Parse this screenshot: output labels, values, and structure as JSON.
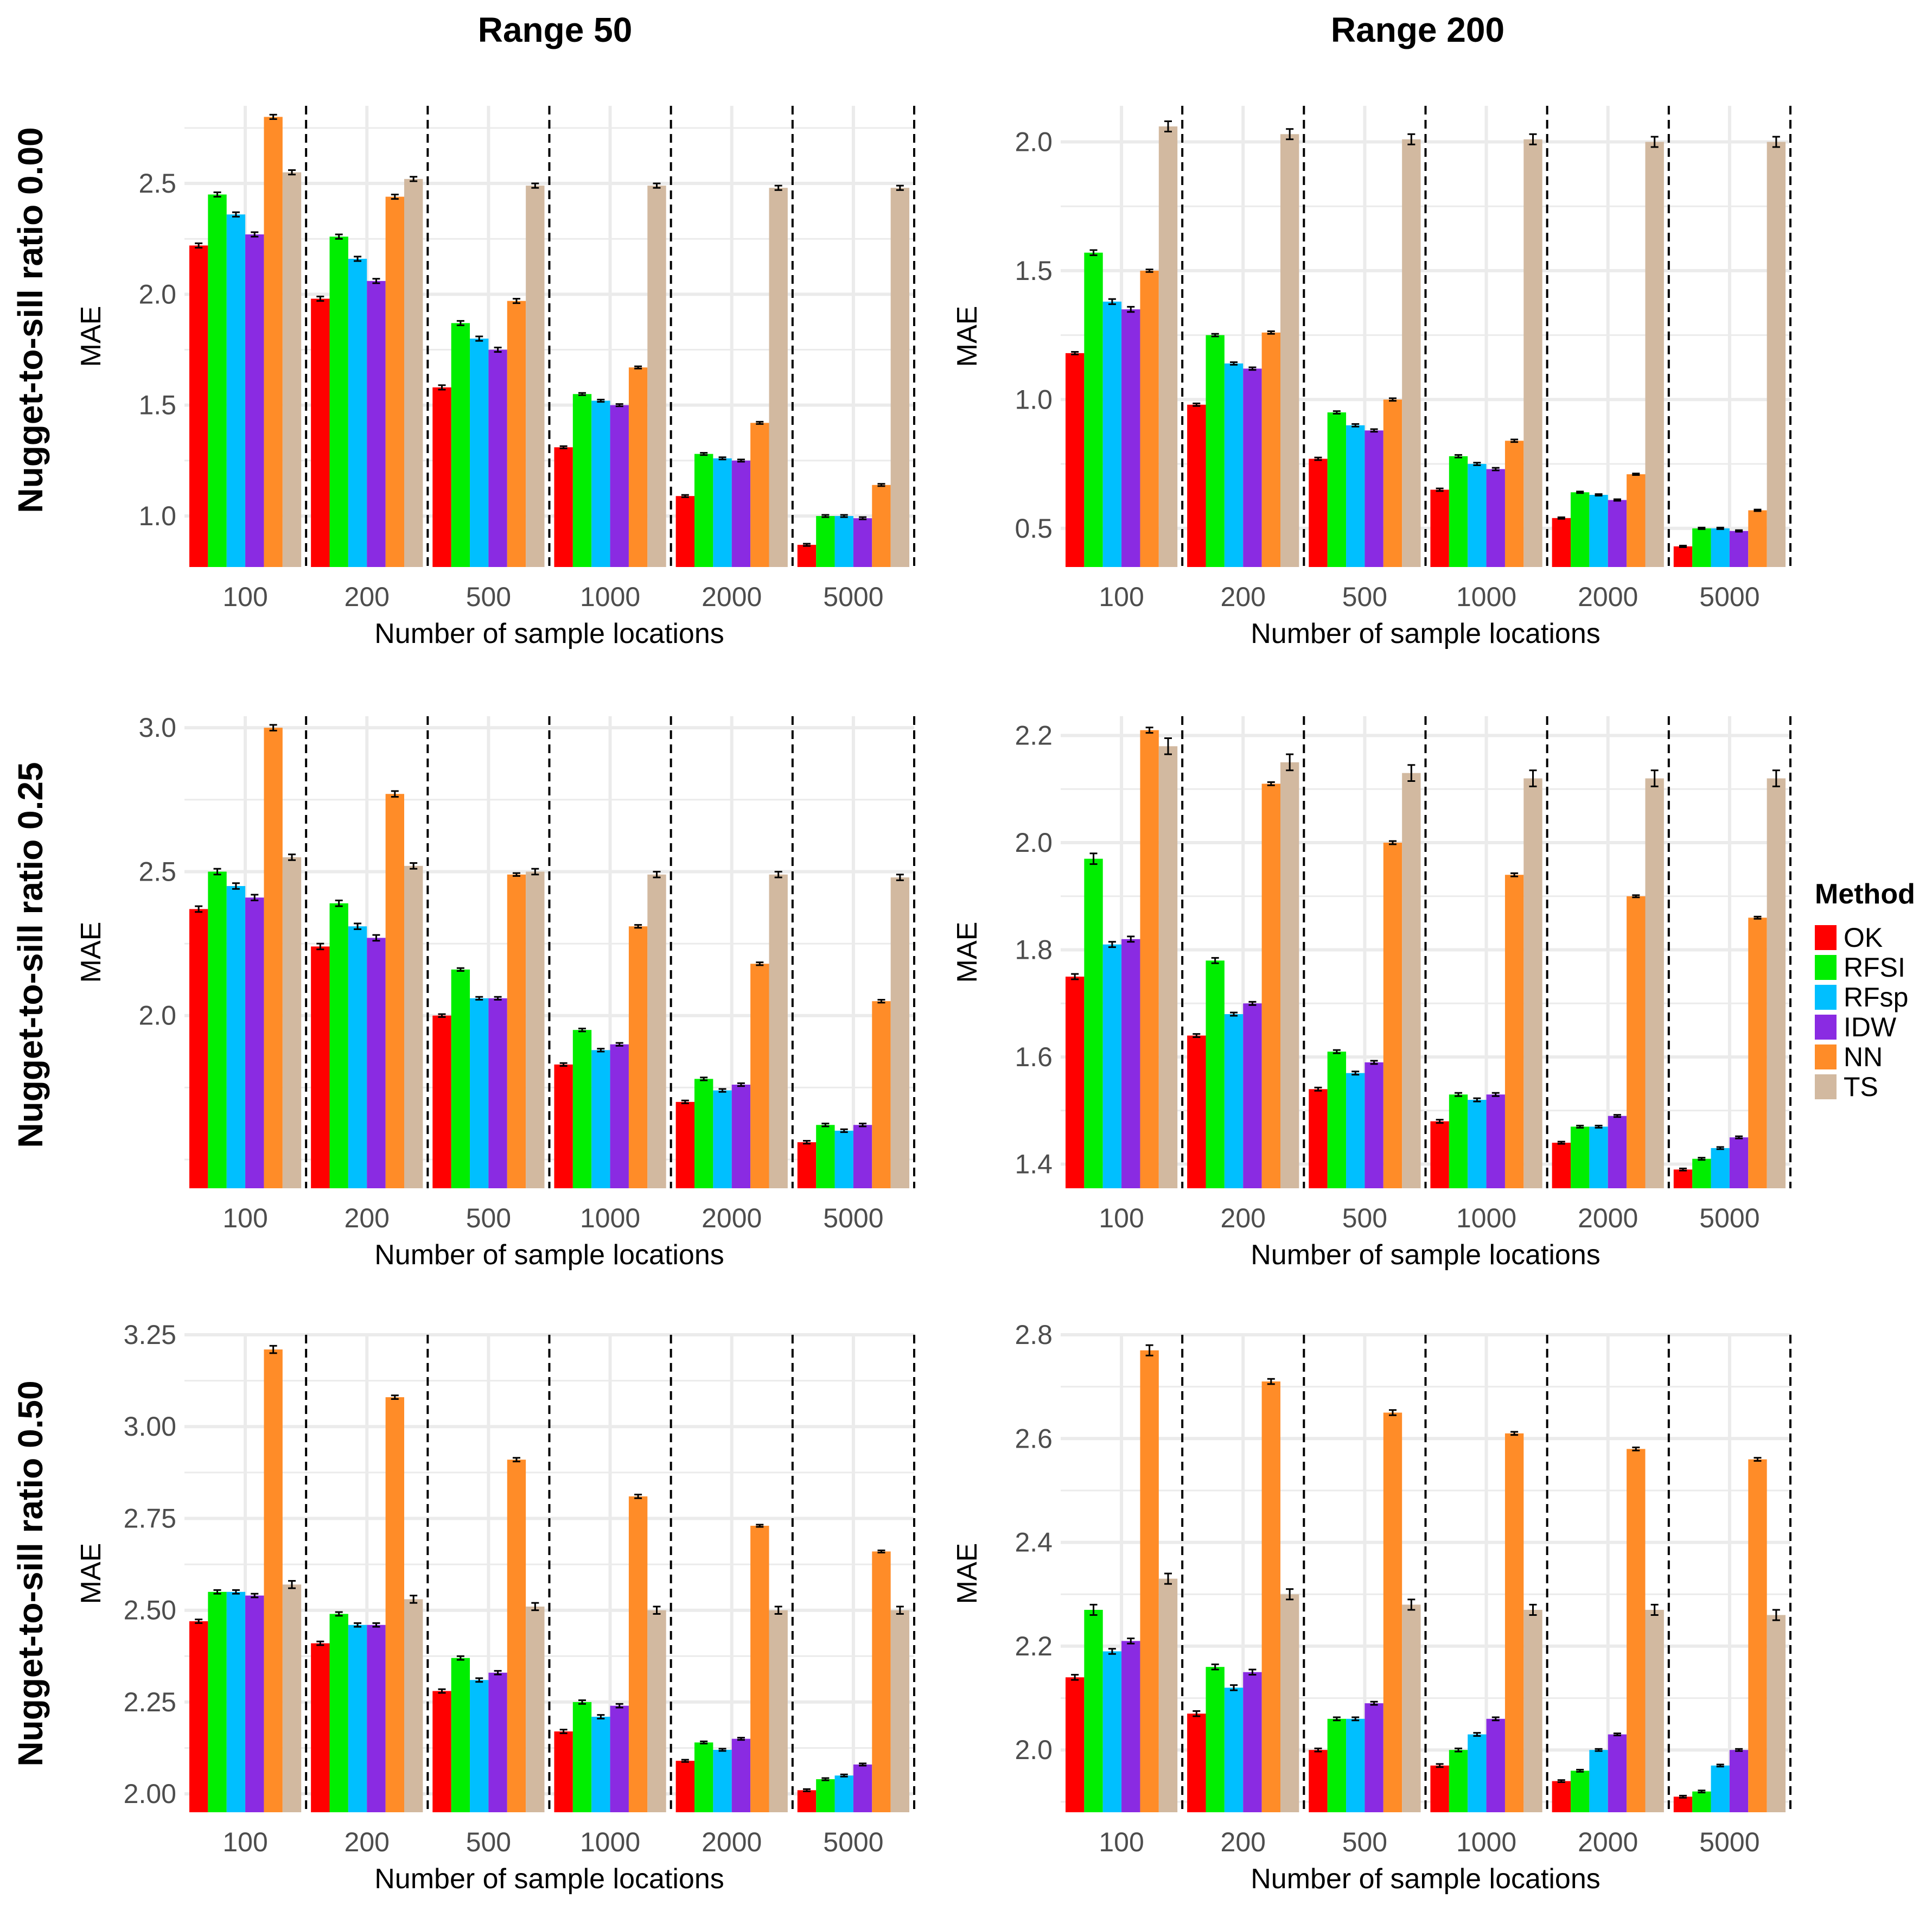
{
  "methods": [
    "OK",
    "RFSI",
    "RFsp",
    "IDW",
    "NN",
    "TS"
  ],
  "colors": {
    "OK": "#ff0000",
    "RFSI": "#00ee00",
    "RFsp": "#00bfff",
    "IDW": "#8a2be2",
    "NN": "#ff8c28",
    "TS": "#d2b9a0",
    "grid": "#ebebeb",
    "divider": "#000000",
    "error_bar": "#000000"
  },
  "columns": {
    "c0": "Range 50",
    "c1": "Range 200"
  },
  "rows": {
    "r0": "Nugget-to-sill ratio 0.00",
    "r1": "Nugget-to-sill ratio 0.25",
    "r2": "Nugget-to-sill ratio 0.50"
  },
  "legend": {
    "title": "Method",
    "items": [
      "OK",
      "RFSI",
      "RFsp",
      "IDW",
      "NN",
      "TS"
    ]
  },
  "chart_data": [
    {
      "id": "p00",
      "type": "bar",
      "row": "Nugget-to-sill ratio 0.00",
      "column": "Range 50",
      "xlabel": "Number of sample locations",
      "ylabel": "MAE",
      "categories": [
        "100",
        "200",
        "500",
        "1000",
        "2000",
        "5000"
      ],
      "ylim": [
        0.77,
        2.85
      ],
      "yticks": [
        1.0,
        1.5,
        2.0,
        2.5
      ],
      "yticklabels": [
        "1.0",
        "1.5",
        "2.0",
        "2.5"
      ],
      "series": [
        {
          "name": "OK",
          "values": [
            2.22,
            1.98,
            1.58,
            1.31,
            1.09,
            0.87
          ],
          "err": [
            0.01,
            0.01,
            0.01,
            0.005,
            0.005,
            0.005
          ]
        },
        {
          "name": "RFSI",
          "values": [
            2.45,
            2.26,
            1.87,
            1.55,
            1.28,
            1.0
          ],
          "err": [
            0.01,
            0.01,
            0.01,
            0.005,
            0.005,
            0.005
          ]
        },
        {
          "name": "RFsp",
          "values": [
            2.36,
            2.16,
            1.8,
            1.52,
            1.26,
            1.0
          ],
          "err": [
            0.01,
            0.01,
            0.01,
            0.005,
            0.005,
            0.005
          ]
        },
        {
          "name": "IDW",
          "values": [
            2.27,
            2.06,
            1.75,
            1.5,
            1.25,
            0.99
          ],
          "err": [
            0.01,
            0.01,
            0.01,
            0.005,
            0.005,
            0.005
          ]
        },
        {
          "name": "NN",
          "values": [
            2.8,
            2.44,
            1.97,
            1.67,
            1.42,
            1.14
          ],
          "err": [
            0.01,
            0.01,
            0.01,
            0.005,
            0.005,
            0.005
          ]
        },
        {
          "name": "TS",
          "values": [
            2.55,
            2.52,
            2.49,
            2.49,
            2.48,
            2.48
          ],
          "err": [
            0.01,
            0.01,
            0.01,
            0.01,
            0.01,
            0.01
          ]
        }
      ]
    },
    {
      "id": "p01",
      "type": "bar",
      "row": "Nugget-to-sill ratio 0.00",
      "column": "Range 200",
      "xlabel": "Number of sample locations",
      "ylabel": "MAE",
      "categories": [
        "100",
        "200",
        "500",
        "1000",
        "2000",
        "5000"
      ],
      "ylim": [
        0.35,
        2.14
      ],
      "yticks": [
        0.5,
        1.0,
        1.5,
        2.0
      ],
      "yticklabels": [
        "0.5",
        "1.0",
        "1.5",
        "2.0"
      ],
      "series": [
        {
          "name": "OK",
          "values": [
            1.18,
            0.98,
            0.77,
            0.65,
            0.54,
            0.43
          ],
          "err": [
            0.005,
            0.005,
            0.005,
            0.005,
            0.003,
            0.003
          ]
        },
        {
          "name": "RFSI",
          "values": [
            1.57,
            1.25,
            0.95,
            0.78,
            0.64,
            0.5
          ],
          "err": [
            0.01,
            0.005,
            0.005,
            0.005,
            0.003,
            0.003
          ]
        },
        {
          "name": "RFsp",
          "values": [
            1.38,
            1.14,
            0.9,
            0.75,
            0.63,
            0.5
          ],
          "err": [
            0.01,
            0.005,
            0.005,
            0.005,
            0.003,
            0.003
          ]
        },
        {
          "name": "IDW",
          "values": [
            1.35,
            1.12,
            0.88,
            0.73,
            0.61,
            0.49
          ],
          "err": [
            0.01,
            0.005,
            0.005,
            0.005,
            0.003,
            0.003
          ]
        },
        {
          "name": "NN",
          "values": [
            1.5,
            1.26,
            1.0,
            0.84,
            0.71,
            0.57
          ],
          "err": [
            0.005,
            0.005,
            0.005,
            0.005,
            0.003,
            0.003
          ]
        },
        {
          "name": "TS",
          "values": [
            2.06,
            2.03,
            2.01,
            2.01,
            2.0,
            2.0
          ],
          "err": [
            0.02,
            0.02,
            0.02,
            0.02,
            0.02,
            0.02
          ]
        }
      ]
    },
    {
      "id": "p10",
      "type": "bar",
      "row": "Nugget-to-sill ratio 0.25",
      "column": "Range 50",
      "xlabel": "Number of sample locations",
      "ylabel": "MAE",
      "categories": [
        "100",
        "200",
        "500",
        "1000",
        "2000",
        "5000"
      ],
      "ylim": [
        1.4,
        3.04
      ],
      "yticks": [
        2.0,
        2.5,
        3.0
      ],
      "yticklabels": [
        "2.0",
        "2.5",
        "3.0"
      ],
      "series": [
        {
          "name": "OK",
          "values": [
            2.37,
            2.24,
            2.0,
            1.83,
            1.7,
            1.56
          ],
          "err": [
            0.01,
            0.01,
            0.005,
            0.005,
            0.005,
            0.005
          ]
        },
        {
          "name": "RFSI",
          "values": [
            2.5,
            2.39,
            2.16,
            1.95,
            1.78,
            1.62
          ],
          "err": [
            0.01,
            0.01,
            0.005,
            0.005,
            0.005,
            0.005
          ]
        },
        {
          "name": "RFsp",
          "values": [
            2.45,
            2.31,
            2.06,
            1.88,
            1.74,
            1.6
          ],
          "err": [
            0.01,
            0.01,
            0.005,
            0.005,
            0.005,
            0.005
          ]
        },
        {
          "name": "IDW",
          "values": [
            2.41,
            2.27,
            2.06,
            1.9,
            1.76,
            1.62
          ],
          "err": [
            0.01,
            0.01,
            0.005,
            0.005,
            0.005,
            0.005
          ]
        },
        {
          "name": "NN",
          "values": [
            3.0,
            2.77,
            2.49,
            2.31,
            2.18,
            2.05
          ],
          "err": [
            0.01,
            0.01,
            0.005,
            0.005,
            0.005,
            0.005
          ]
        },
        {
          "name": "TS",
          "values": [
            2.55,
            2.52,
            2.5,
            2.49,
            2.49,
            2.48
          ],
          "err": [
            0.01,
            0.01,
            0.01,
            0.01,
            0.01,
            0.01
          ]
        }
      ]
    },
    {
      "id": "p11",
      "type": "bar",
      "row": "Nugget-to-sill ratio 0.25",
      "column": "Range 200",
      "xlabel": "Number of sample locations",
      "ylabel": "MAE",
      "categories": [
        "100",
        "200",
        "500",
        "1000",
        "2000",
        "5000"
      ],
      "ylim": [
        1.355,
        2.236
      ],
      "yticks": [
        1.4,
        1.6,
        1.8,
        2.0,
        2.2
      ],
      "yticklabels": [
        "1.4",
        "1.6",
        "1.8",
        "2.0",
        "2.2"
      ],
      "series": [
        {
          "name": "OK",
          "values": [
            1.75,
            1.64,
            1.54,
            1.48,
            1.44,
            1.39
          ],
          "err": [
            0.005,
            0.003,
            0.003,
            0.003,
            0.002,
            0.002
          ]
        },
        {
          "name": "RFSI",
          "values": [
            1.97,
            1.78,
            1.61,
            1.53,
            1.47,
            1.41
          ],
          "err": [
            0.01,
            0.005,
            0.003,
            0.003,
            0.002,
            0.002
          ]
        },
        {
          "name": "RFsp",
          "values": [
            1.81,
            1.68,
            1.57,
            1.52,
            1.47,
            1.43
          ],
          "err": [
            0.005,
            0.003,
            0.003,
            0.003,
            0.002,
            0.002
          ]
        },
        {
          "name": "IDW",
          "values": [
            1.82,
            1.7,
            1.59,
            1.53,
            1.49,
            1.45
          ],
          "err": [
            0.005,
            0.003,
            0.003,
            0.003,
            0.002,
            0.002
          ]
        },
        {
          "name": "NN",
          "values": [
            2.21,
            2.11,
            2.0,
            1.94,
            1.9,
            1.86
          ],
          "err": [
            0.005,
            0.003,
            0.003,
            0.003,
            0.002,
            0.002
          ]
        },
        {
          "name": "TS",
          "values": [
            2.18,
            2.15,
            2.13,
            2.12,
            2.12,
            2.12
          ],
          "err": [
            0.015,
            0.015,
            0.015,
            0.015,
            0.015,
            0.015
          ]
        }
      ]
    },
    {
      "id": "p20",
      "type": "bar",
      "row": "Nugget-to-sill ratio 0.50",
      "column": "Range 50",
      "xlabel": "Number of sample locations",
      "ylabel": "MAE",
      "categories": [
        "100",
        "200",
        "500",
        "1000",
        "2000",
        "5000"
      ],
      "ylim": [
        1.95,
        3.25
      ],
      "yticks": [
        2.0,
        2.25,
        2.5,
        2.75,
        3.0,
        3.25
      ],
      "yticklabels": [
        "2.00",
        "2.25",
        "2.50",
        "2.75",
        "3.00",
        "3.25"
      ],
      "series": [
        {
          "name": "OK",
          "values": [
            2.47,
            2.41,
            2.28,
            2.17,
            2.09,
            2.01
          ],
          "err": [
            0.005,
            0.005,
            0.005,
            0.005,
            0.003,
            0.003
          ]
        },
        {
          "name": "RFSI",
          "values": [
            2.55,
            2.49,
            2.37,
            2.25,
            2.14,
            2.04
          ],
          "err": [
            0.005,
            0.005,
            0.005,
            0.005,
            0.003,
            0.003
          ]
        },
        {
          "name": "RFsp",
          "values": [
            2.55,
            2.46,
            2.31,
            2.21,
            2.12,
            2.05
          ],
          "err": [
            0.005,
            0.005,
            0.005,
            0.005,
            0.003,
            0.003
          ]
        },
        {
          "name": "IDW",
          "values": [
            2.54,
            2.46,
            2.33,
            2.24,
            2.15,
            2.08
          ],
          "err": [
            0.005,
            0.005,
            0.005,
            0.005,
            0.003,
            0.003
          ]
        },
        {
          "name": "NN",
          "values": [
            3.21,
            3.08,
            2.91,
            2.81,
            2.73,
            2.66
          ],
          "err": [
            0.01,
            0.005,
            0.005,
            0.005,
            0.003,
            0.003
          ]
        },
        {
          "name": "TS",
          "values": [
            2.57,
            2.53,
            2.51,
            2.5,
            2.5,
            2.5
          ],
          "err": [
            0.01,
            0.01,
            0.01,
            0.01,
            0.01,
            0.01
          ]
        }
      ]
    },
    {
      "id": "p21",
      "type": "bar",
      "row": "Nugget-to-sill ratio 0.50",
      "column": "Range 200",
      "xlabel": "Number of sample locations",
      "ylabel": "MAE",
      "categories": [
        "100",
        "200",
        "500",
        "1000",
        "2000",
        "5000"
      ],
      "ylim": [
        1.88,
        2.8
      ],
      "yticks": [
        2.0,
        2.2,
        2.4,
        2.6,
        2.8
      ],
      "yticklabels": [
        "2.0",
        "2.2",
        "2.4",
        "2.6",
        "2.8"
      ],
      "series": [
        {
          "name": "OK",
          "values": [
            2.14,
            2.07,
            2.0,
            1.97,
            1.94,
            1.91
          ],
          "err": [
            0.005,
            0.005,
            0.003,
            0.003,
            0.002,
            0.002
          ]
        },
        {
          "name": "RFSI",
          "values": [
            2.27,
            2.16,
            2.06,
            2.0,
            1.96,
            1.92
          ],
          "err": [
            0.01,
            0.005,
            0.003,
            0.003,
            0.002,
            0.002
          ]
        },
        {
          "name": "RFsp",
          "values": [
            2.19,
            2.12,
            2.06,
            2.03,
            2.0,
            1.97
          ],
          "err": [
            0.005,
            0.005,
            0.003,
            0.003,
            0.002,
            0.002
          ]
        },
        {
          "name": "IDW",
          "values": [
            2.21,
            2.15,
            2.09,
            2.06,
            2.03,
            2.0
          ],
          "err": [
            0.005,
            0.005,
            0.003,
            0.003,
            0.002,
            0.002
          ]
        },
        {
          "name": "NN",
          "values": [
            2.77,
            2.71,
            2.65,
            2.61,
            2.58,
            2.56
          ],
          "err": [
            0.01,
            0.005,
            0.005,
            0.003,
            0.003,
            0.003
          ]
        },
        {
          "name": "TS",
          "values": [
            2.33,
            2.3,
            2.28,
            2.27,
            2.27,
            2.26
          ],
          "err": [
            0.01,
            0.01,
            0.01,
            0.01,
            0.01,
            0.01
          ]
        }
      ]
    }
  ]
}
